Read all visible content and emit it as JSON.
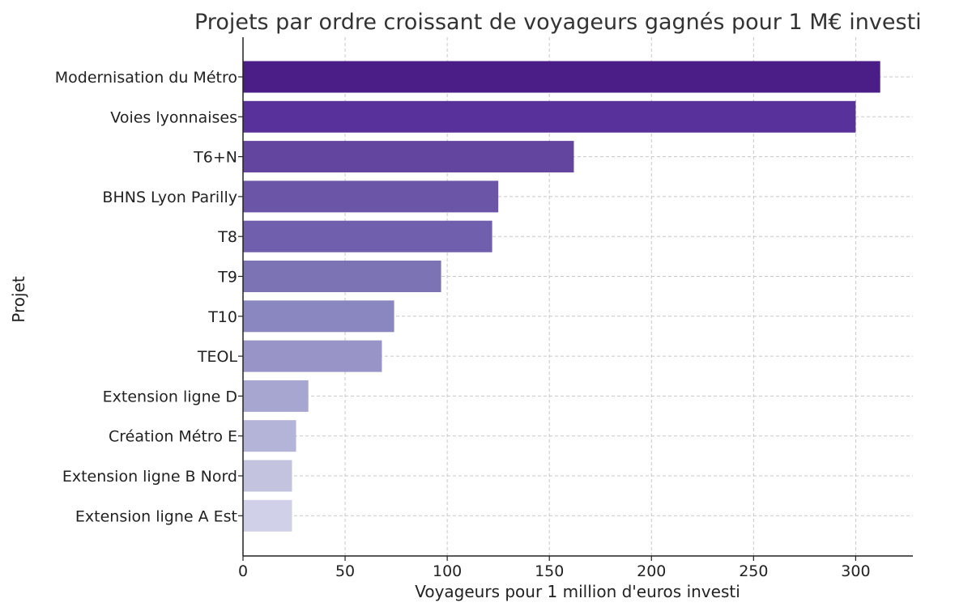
{
  "chart_data": {
    "type": "bar",
    "orientation": "horizontal",
    "title": "Projets par ordre croissant de voyageurs gagnés pour 1 M€ investi",
    "xlabel": "Voyageurs pour 1 million d'euros investi",
    "ylabel": "Projet",
    "categories": [
      "Modernisation du Métro",
      "Voies lyonnaises",
      "T6+N",
      "BHNS Lyon Parilly",
      "T8",
      "T9",
      "T10",
      "TEOL",
      "Extension ligne D",
      "Création Métro E",
      "Extension ligne B Nord",
      "Extension ligne A Est"
    ],
    "values": [
      312,
      300,
      162,
      125,
      122,
      97,
      74,
      68,
      32,
      26,
      24,
      24
    ],
    "xlim": [
      0,
      328
    ],
    "xticks": [
      0,
      50,
      100,
      150,
      200,
      250,
      300
    ],
    "grid": true,
    "colors": [
      "#4b1d87",
      "#59319a",
      "#63449f",
      "#6a55a7",
      "#705fac",
      "#7c73b5",
      "#8a86bf",
      "#9894c7",
      "#a7a6d0",
      "#b4b4d8",
      "#c3c3e0",
      "#d0d0e8"
    ]
  }
}
